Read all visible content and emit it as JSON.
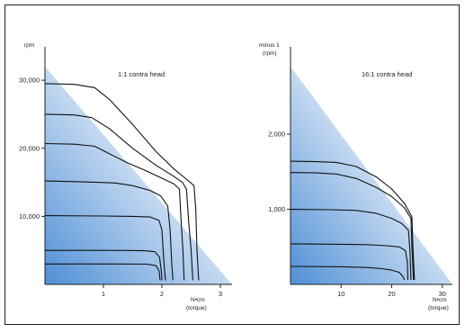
{
  "colors": {
    "gradient_dark": "#4f8fd6",
    "gradient_light": "#ffffff",
    "curve": "#111111",
    "axis": "#222222"
  },
  "chart_data": [
    {
      "type": "line",
      "title": "1:1 contra head",
      "ylabel": "rpm",
      "xlabel_unit": "N•cm",
      "xlabel_quantity": "(torque)",
      "xlim": [
        0,
        3.2
      ],
      "ylim": [
        0,
        32000
      ],
      "xticks": [
        1,
        2,
        3
      ],
      "xtick_labels": [
        "1",
        "2",
        "3"
      ],
      "yticks": [
        10000,
        20000,
        30000
      ],
      "ytick_labels": [
        "10,000",
        "20,000",
        "30,000"
      ],
      "fill_boundary": [
        [
          0,
          32000
        ],
        [
          3.2,
          0
        ]
      ],
      "series": [
        {
          "points": [
            [
              0,
              29500
            ],
            [
              0.5,
              29400
            ],
            [
              0.85,
              28900
            ],
            [
              1.1,
              27200
            ],
            [
              1.5,
              23500
            ],
            [
              1.9,
              19500
            ],
            [
              2.2,
              17000
            ],
            [
              2.4,
              15600
            ],
            [
              2.55,
              14500
            ],
            [
              2.58,
              11000
            ],
            [
              2.6,
              5000
            ],
            [
              2.63,
              600
            ]
          ]
        },
        {
          "points": [
            [
              0,
              25000
            ],
            [
              0.5,
              24900
            ],
            [
              0.8,
              24500
            ],
            [
              1.1,
              22900
            ],
            [
              1.5,
              20000
            ],
            [
              1.9,
              17500
            ],
            [
              2.2,
              15900
            ],
            [
              2.35,
              15000
            ],
            [
              2.42,
              14000
            ],
            [
              2.46,
              9000
            ],
            [
              2.5,
              5000
            ],
            [
              2.53,
              600
            ]
          ]
        },
        {
          "points": [
            [
              0,
              20700
            ],
            [
              0.5,
              20600
            ],
            [
              0.85,
              20300
            ],
            [
              1.1,
              19200
            ],
            [
              1.4,
              17900
            ],
            [
              1.7,
              16800
            ],
            [
              2.0,
              15600
            ],
            [
              2.2,
              14800
            ],
            [
              2.3,
              14000
            ],
            [
              2.33,
              9000
            ],
            [
              2.36,
              5000
            ],
            [
              2.38,
              600
            ]
          ]
        },
        {
          "points": [
            [
              0,
              15200
            ],
            [
              0.5,
              15100
            ],
            [
              0.9,
              15000
            ],
            [
              1.2,
              14900
            ],
            [
              1.5,
              14500
            ],
            [
              1.8,
              13800
            ],
            [
              1.98,
              13000
            ],
            [
              2.1,
              11500
            ],
            [
              2.14,
              8000
            ],
            [
              2.17,
              3000
            ],
            [
              2.19,
              600
            ]
          ]
        },
        {
          "points": [
            [
              0,
              10100
            ],
            [
              1.0,
              10050
            ],
            [
              1.5,
              10000
            ],
            [
              1.8,
              9900
            ],
            [
              1.95,
              9400
            ],
            [
              2.0,
              8000
            ],
            [
              2.03,
              4000
            ],
            [
              2.06,
              600
            ]
          ]
        },
        {
          "points": [
            [
              0,
              5000
            ],
            [
              1.2,
              5000
            ],
            [
              1.7,
              4950
            ],
            [
              1.88,
              4800
            ],
            [
              1.96,
              4000
            ],
            [
              1.99,
              2000
            ],
            [
              2.0,
              600
            ]
          ]
        },
        {
          "points": [
            [
              0,
              3000
            ],
            [
              1.2,
              3000
            ],
            [
              1.75,
              2970
            ],
            [
              1.9,
              2750
            ],
            [
              1.95,
              2000
            ],
            [
              1.97,
              600
            ]
          ]
        }
      ]
    },
    {
      "type": "line",
      "title": "16:1 contra head",
      "ylabel_line1": "minus 1",
      "ylabel_line2": "(rpm)",
      "xlabel_unit": "N•cm",
      "xlabel_quantity": "(torque)",
      "xlim": [
        0,
        32
      ],
      "ylim": [
        0,
        2900
      ],
      "xticks": [
        10,
        20,
        30
      ],
      "xtick_labels": [
        "10",
        "20",
        "30"
      ],
      "yticks": [
        1000,
        2000
      ],
      "ytick_labels": [
        "1,000",
        "2,000"
      ],
      "fill_boundary": [
        [
          0,
          2900
        ],
        [
          32,
          0
        ]
      ],
      "series": [
        {
          "points": [
            [
              0,
              1640
            ],
            [
              5,
              1635
            ],
            [
              9,
              1625
            ],
            [
              13,
              1570
            ],
            [
              17,
              1430
            ],
            [
              20,
              1270
            ],
            [
              22.5,
              1080
            ],
            [
              24,
              900
            ],
            [
              24.2,
              500
            ],
            [
              24.5,
              60
            ]
          ]
        },
        {
          "points": [
            [
              0,
              1490
            ],
            [
              5,
              1485
            ],
            [
              9,
              1470
            ],
            [
              13,
              1410
            ],
            [
              17,
              1290
            ],
            [
              20,
              1170
            ],
            [
              22.5,
              1020
            ],
            [
              23.8,
              880
            ],
            [
              24,
              500
            ],
            [
              24.3,
              60
            ]
          ]
        },
        {
          "points": [
            [
              0,
              1000
            ],
            [
              8,
              995
            ],
            [
              13,
              985
            ],
            [
              17,
              945
            ],
            [
              20,
              880
            ],
            [
              22,
              810
            ],
            [
              23.3,
              720
            ],
            [
              23.6,
              450
            ],
            [
              23.8,
              60
            ]
          ]
        },
        {
          "points": [
            [
              0,
              540
            ],
            [
              10,
              535
            ],
            [
              15,
              530
            ],
            [
              19,
              515
            ],
            [
              21.5,
              500
            ],
            [
              22.7,
              450
            ],
            [
              23.1,
              300
            ],
            [
              23.2,
              60
            ]
          ]
        },
        {
          "points": [
            [
              0,
              240
            ],
            [
              10,
              235
            ],
            [
              15,
              225
            ],
            [
              18,
              210
            ],
            [
              20,
              190
            ],
            [
              21.5,
              160
            ],
            [
              22.3,
              100
            ],
            [
              22.5,
              60
            ]
          ]
        }
      ]
    }
  ]
}
